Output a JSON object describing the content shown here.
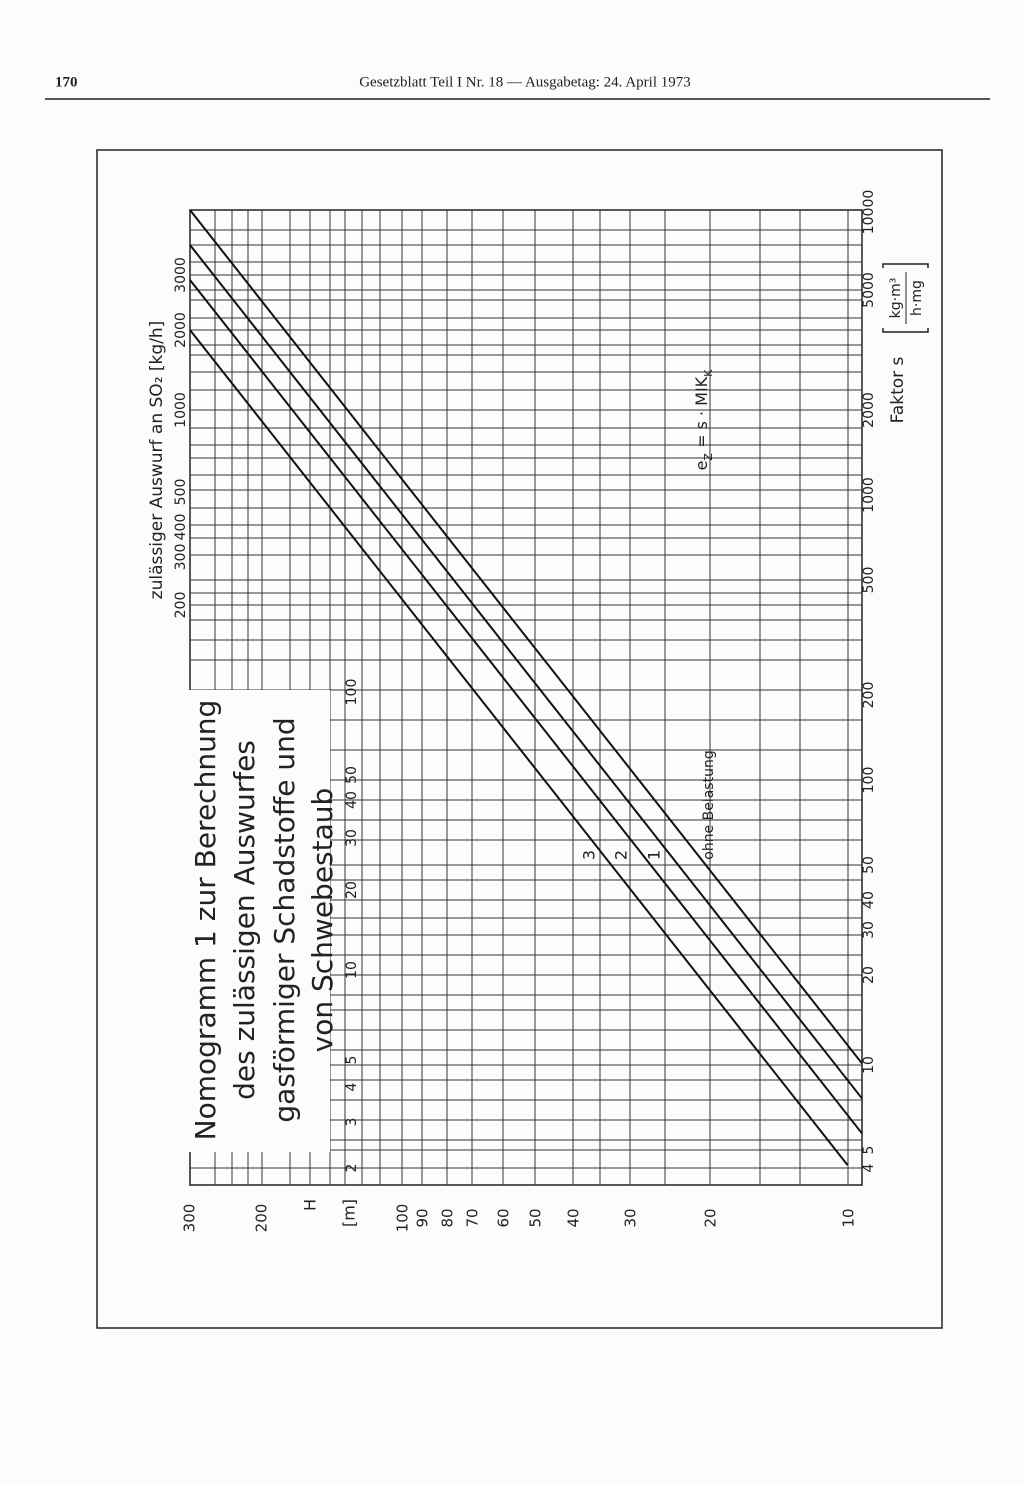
{
  "header": {
    "page_number": "170",
    "title": "Gesetzblatt Teil I Nr. 18 — Ausgabetag: 24. April 1973"
  },
  "nomogram": {
    "title_lines": [
      "Nomogramm 1 zur Berechnung",
      "des zulässigen Auswurfes",
      "gasförmiger Schadstoffe und",
      "von Schwebestaub"
    ],
    "emission_axis": {
      "title": "zulässiger Auswurf an SO₂ [kg/h]",
      "labels": [
        "200",
        "300",
        "400",
        "500",
        "1000",
        "2000",
        "3000"
      ]
    },
    "height_axis": {
      "symbol": "H",
      "unit": "[m]",
      "labels": [
        "300",
        "200",
        "100",
        "90",
        "80",
        "70",
        "60",
        "50",
        "40",
        "30",
        "20",
        "10"
      ]
    },
    "height_inner_labels": [
      "2",
      "3",
      "4",
      "5",
      "10",
      "20",
      "30",
      "40",
      "50",
      "100"
    ],
    "factor_axis": {
      "title": "Faktor s",
      "unit": {
        "numerator": "kg·m³",
        "denominator": "h·mg"
      },
      "labels": [
        "4",
        "5",
        "10",
        "20",
        "30",
        "40",
        "50",
        "100",
        "200",
        "500",
        "1000",
        "2000",
        "5000",
        "10000"
      ]
    },
    "line_labels": [
      "3",
      "2",
      "1",
      "ohne Belastung"
    ],
    "formula": {
      "base": "e",
      "sub1": "Z",
      "middle": " = s · MIK",
      "sub2": "K"
    }
  }
}
